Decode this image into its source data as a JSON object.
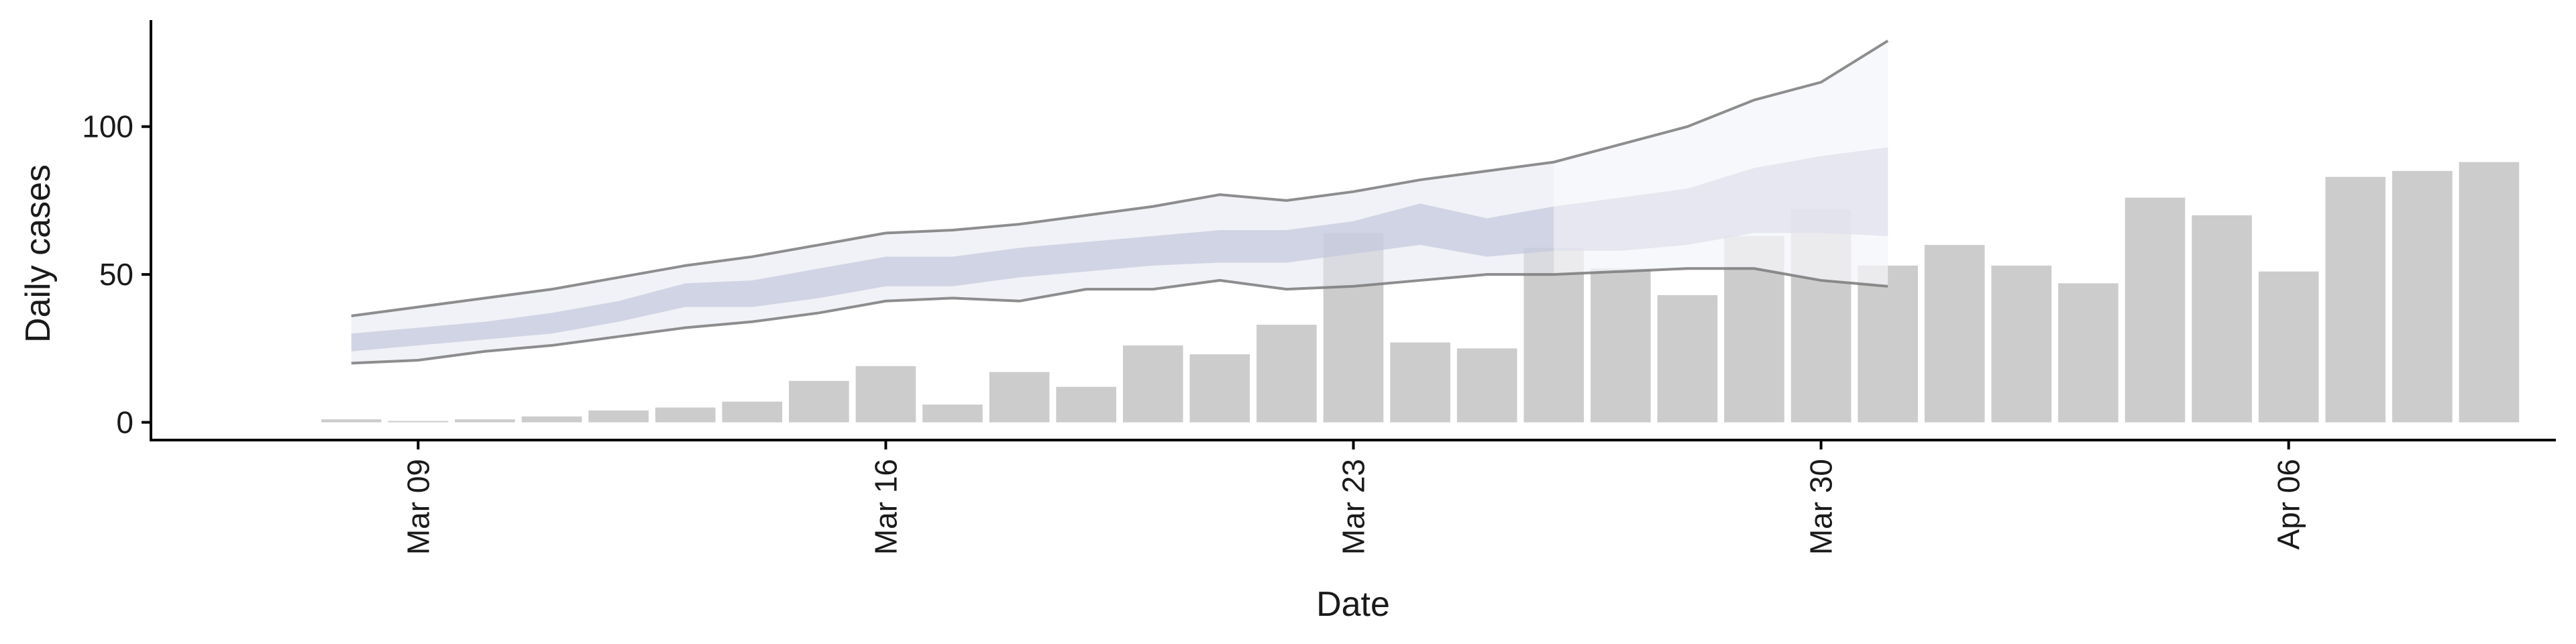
{
  "chart_data": {
    "type": "bar",
    "xlabel": "Date",
    "ylabel": "Daily cases",
    "xlim": [
      "2020-03-05",
      "2020-04-10"
    ],
    "ylim": [
      -6,
      136
    ],
    "x_ticks": [
      {
        "date": "2020-03-09",
        "label": "Mar 09"
      },
      {
        "date": "2020-03-16",
        "label": "Mar 16"
      },
      {
        "date": "2020-03-23",
        "label": "Mar 23"
      },
      {
        "date": "2020-03-30",
        "label": "Mar 30"
      },
      {
        "date": "2020-04-06",
        "label": "Apr 06"
      }
    ],
    "y_ticks": [
      0,
      50,
      100
    ],
    "grid": false,
    "legend": "none",
    "colors": {
      "bars": "#cccccc",
      "band_outer": "#e6e8f0",
      "band_inner": "#c3c8db",
      "bound_line": "#7a7a7a",
      "forecast_fill": "#f0f1f4"
    },
    "observed": {
      "dates": [
        "2020-03-08",
        "2020-03-09",
        "2020-03-10",
        "2020-03-11",
        "2020-03-12",
        "2020-03-13",
        "2020-03-14",
        "2020-03-15",
        "2020-03-16",
        "2020-03-17",
        "2020-03-18",
        "2020-03-19",
        "2020-03-20",
        "2020-03-21",
        "2020-03-22",
        "2020-03-23",
        "2020-03-24",
        "2020-03-25",
        "2020-03-26",
        "2020-03-27",
        "2020-03-28",
        "2020-03-29",
        "2020-03-30",
        "2020-03-31",
        "2020-04-01",
        "2020-04-02",
        "2020-04-03",
        "2020-04-04",
        "2020-04-05",
        "2020-04-06",
        "2020-04-07",
        "2020-04-08",
        "2020-04-09"
      ],
      "values": [
        1,
        0,
        1,
        2,
        4,
        5,
        7,
        14,
        19,
        6,
        17,
        12,
        26,
        23,
        33,
        64,
        27,
        25,
        59,
        52,
        43,
        63,
        72,
        53,
        60,
        53,
        47,
        76,
        70,
        51,
        83,
        85,
        88
      ]
    },
    "estimate": {
      "dates": [
        "2020-03-08",
        "2020-03-09",
        "2020-03-10",
        "2020-03-11",
        "2020-03-12",
        "2020-03-13",
        "2020-03-14",
        "2020-03-15",
        "2020-03-16",
        "2020-03-17",
        "2020-03-18",
        "2020-03-19",
        "2020-03-20",
        "2020-03-21",
        "2020-03-22",
        "2020-03-23",
        "2020-03-24",
        "2020-03-25",
        "2020-03-26",
        "2020-03-27",
        "2020-03-28",
        "2020-03-29",
        "2020-03-30",
        "2020-03-31"
      ],
      "lower_90": [
        20,
        21,
        24,
        26,
        29,
        32,
        34,
        37,
        41,
        42,
        41,
        45,
        45,
        48,
        45,
        46,
        48,
        50,
        50,
        51,
        52,
        52,
        48,
        46
      ],
      "lower_50": [
        24,
        26,
        28,
        30,
        34,
        39,
        39,
        42,
        46,
        46,
        49,
        51,
        53,
        54,
        54,
        57,
        60,
        56,
        58,
        58,
        60,
        64,
        64,
        63
      ],
      "upper_50": [
        30,
        32,
        34,
        37,
        41,
        47,
        48,
        52,
        56,
        56,
        59,
        61,
        63,
        65,
        65,
        68,
        74,
        69,
        73,
        76,
        79,
        86,
        90,
        93
      ],
      "upper_90": [
        36,
        39,
        42,
        45,
        49,
        53,
        56,
        60,
        64,
        65,
        67,
        70,
        73,
        77,
        75,
        78,
        82,
        85,
        88,
        94,
        100,
        109,
        115,
        129
      ]
    },
    "forecast_start": "2020-03-26"
  }
}
